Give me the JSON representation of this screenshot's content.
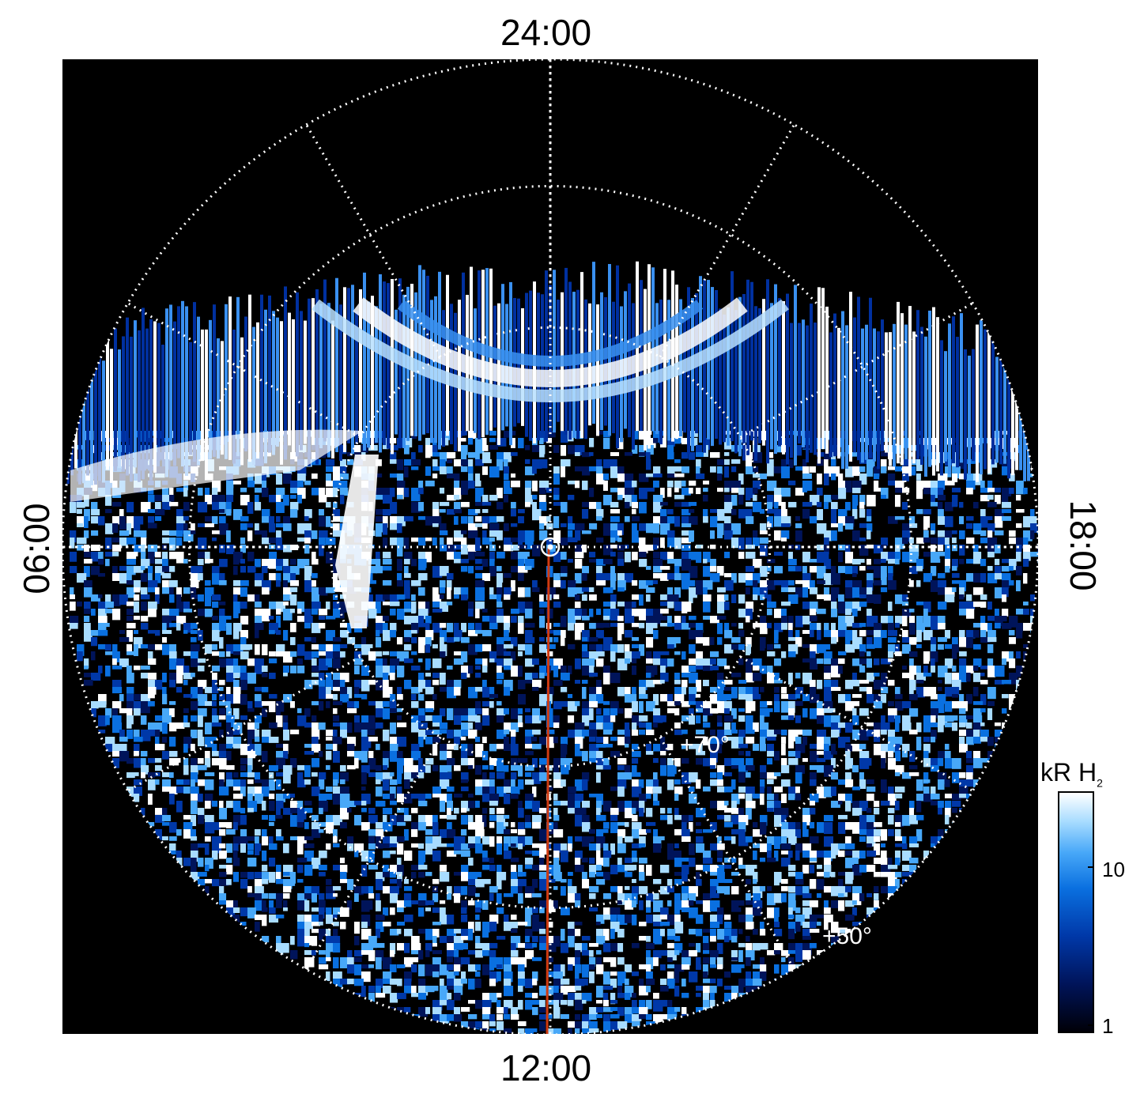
{
  "local_time_labels": {
    "top": "24:00",
    "bottom": "12:00",
    "left": "06:00",
    "right": "18:00"
  },
  "latitude_labels": {
    "inner": "+70°",
    "outer": "+50°"
  },
  "colorbar": {
    "title_main": "kR H",
    "title_sub": "2",
    "tick_10": "10",
    "tick_1": "1",
    "scale": "log",
    "range": [
      1,
      20
    ],
    "colors": [
      "#000008",
      "#00145a",
      "#0038a8",
      "#0a70e0",
      "#48a8f8",
      "#a8dcff",
      "#ffffff"
    ]
  },
  "colors": {
    "grid": "#ffffff",
    "background": "#000000",
    "meridian_line": "#d03a10",
    "aurora_bright": "#ffffff",
    "aurora_mid": "#3a90f0",
    "aurora_dark": "#0030a0"
  }
}
